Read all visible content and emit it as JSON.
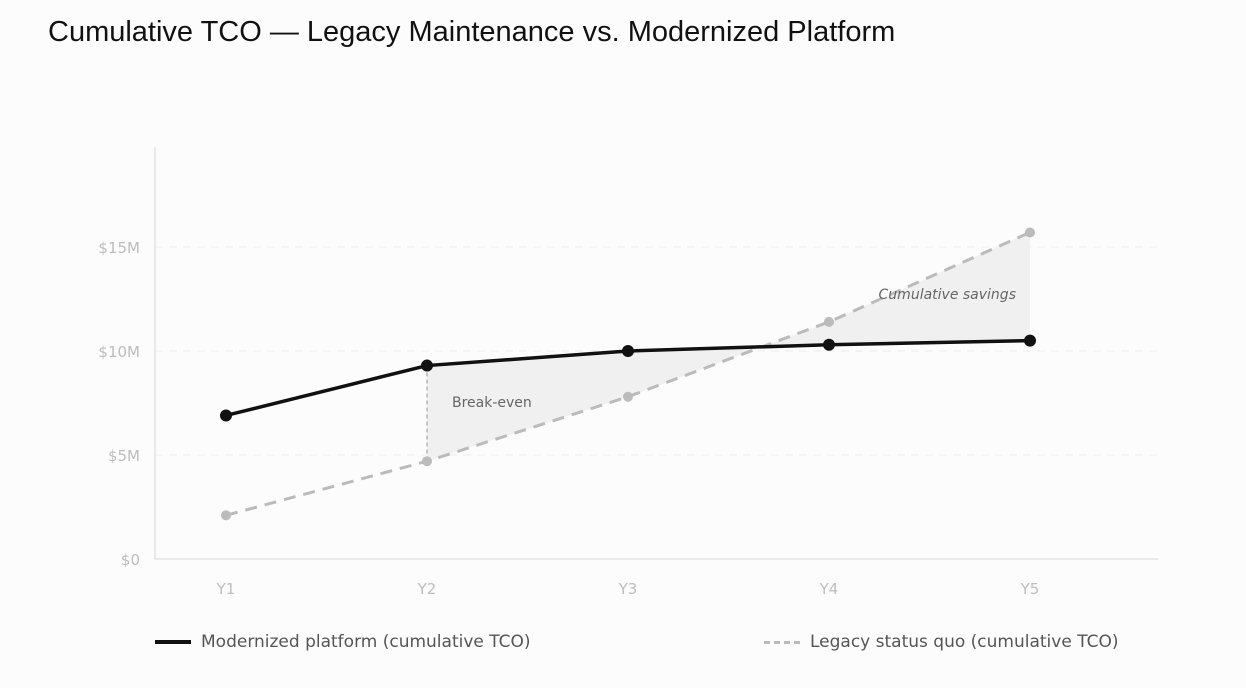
{
  "chart_data": {
    "type": "line",
    "title": "Cumulative TCO — Legacy Maintenance vs. Modernized Platform",
    "categories": [
      "Y1",
      "Y2",
      "Y3",
      "Y4",
      "Y5"
    ],
    "ylim": [
      0,
      20
    ],
    "yticks": [
      {
        "value": 0,
        "label": "$0"
      },
      {
        "value": 5,
        "label": "$5M"
      },
      {
        "value": 10,
        "label": "$10M"
      },
      {
        "value": 15,
        "label": "$15M"
      }
    ],
    "yunit": "$M",
    "grid": true,
    "legend_position": "bottom",
    "series": [
      {
        "name": "Modernized platform (cumulative TCO)",
        "values": [
          6.9,
          9.3,
          10.0,
          10.3,
          10.5
        ],
        "color": "#111111",
        "style": "solid"
      },
      {
        "name": "Legacy status quo (cumulative TCO)",
        "values": [
          2.1,
          4.7,
          7.8,
          11.4,
          15.7
        ],
        "color": "#bbbbbb",
        "style": "dashed"
      }
    ],
    "shaded_region": {
      "from": "Y2",
      "to": "Y5",
      "color": "#f0f0f0"
    },
    "annotations": [
      {
        "text": "Break-even",
        "at": "Y2",
        "style": "normal"
      },
      {
        "text": "Cumulative savings",
        "at": "Y5",
        "style": "italic"
      }
    ]
  }
}
